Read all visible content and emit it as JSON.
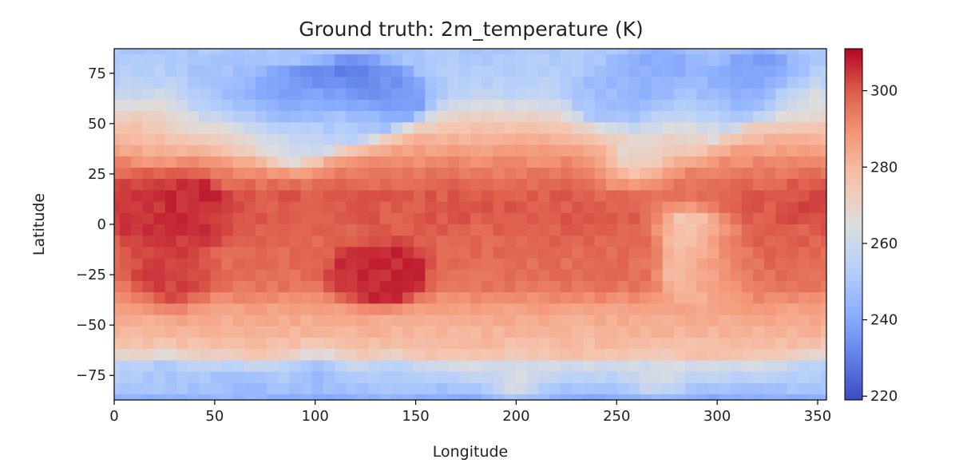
{
  "chart_data": {
    "type": "heatmap",
    "title": "Ground truth: 2m_temperature (K)",
    "xlabel": "Longitude",
    "ylabel": "Latitude",
    "xlim": [
      0,
      354.375
    ],
    "ylim": [
      -87.1875,
      87.1875
    ],
    "x_ticks": [
      0,
      50,
      100,
      150,
      200,
      250,
      300,
      350
    ],
    "x_tick_labels": [
      "0",
      "50",
      "100",
      "150",
      "200",
      "250",
      "300",
      "350"
    ],
    "y_ticks": [
      75,
      50,
      25,
      0,
      -25,
      -50,
      -75
    ],
    "y_tick_labels": [
      "75",
      "50",
      "25",
      "0",
      "−25",
      "−50",
      "−75"
    ],
    "colormap": "coolwarm",
    "color_range": [
      219,
      311
    ],
    "colorbar_ticks": [
      300,
      280,
      260,
      240,
      220
    ],
    "colorbar_tick_labels": [
      "300",
      "280",
      "260",
      "240",
      "220"
    ],
    "grid": {
      "n_lon": 64,
      "n_lat": 32,
      "lon_step": 5.625,
      "lat_step": 5.625,
      "first_lon": 0,
      "first_lat": 87.1875
    },
    "features": [
      {
        "lon": 36,
        "lat": 10,
        "value": 309
      },
      {
        "lon": 30,
        "lat": 8,
        "value": 307
      },
      {
        "lon": 10,
        "lat": 10,
        "value": 303
      },
      {
        "lon": 122,
        "lat": -24,
        "value": 308
      },
      {
        "lon": 142,
        "lat": -24,
        "value": 308
      },
      {
        "lon": 130,
        "lat": -25,
        "value": 303
      },
      {
        "lon": 20,
        "lat": 5,
        "value": 304
      },
      {
        "lon": 25,
        "lat": -20,
        "value": 303
      },
      {
        "lon": 30,
        "lat": -30,
        "value": 303
      },
      {
        "lon": 40,
        "lat": 0,
        "value": 303
      },
      {
        "lon": 300,
        "lat": -25,
        "value": 302
      },
      {
        "lon": 315,
        "lat": -10,
        "value": 301
      },
      {
        "lon": 345,
        "lat": 12,
        "value": 302
      },
      {
        "lon": 230,
        "lat": 15,
        "value": 300
      },
      {
        "lon": 160,
        "lat": 10,
        "value": 300
      },
      {
        "lon": 95,
        "lat": 65,
        "value": 232
      },
      {
        "lon": 115,
        "lat": 70,
        "value": 226
      },
      {
        "lon": 130,
        "lat": 68,
        "value": 233
      },
      {
        "lon": 145,
        "lat": 62,
        "value": 238
      },
      {
        "lon": 75,
        "lat": 62,
        "value": 238
      },
      {
        "lon": 60,
        "lat": 65,
        "value": 243
      },
      {
        "lon": 40,
        "lat": 66,
        "value": 248
      },
      {
        "lon": 55,
        "lat": 75,
        "value": 252
      },
      {
        "lon": 100,
        "lat": 55,
        "value": 253
      },
      {
        "lon": 120,
        "lat": 50,
        "value": 256
      },
      {
        "lon": 325,
        "lat": 75,
        "value": 238
      },
      {
        "lon": 318,
        "lat": 72,
        "value": 236
      },
      {
        "lon": 265,
        "lat": 65,
        "value": 242
      },
      {
        "lon": 255,
        "lat": 70,
        "value": 244
      },
      {
        "lon": 285,
        "lat": 55,
        "value": 252
      },
      {
        "lon": 300,
        "lat": 60,
        "value": 246
      },
      {
        "lon": 240,
        "lat": 60,
        "value": 250
      },
      {
        "lon": 275,
        "lat": 80,
        "value": 240
      },
      {
        "lon": 30,
        "lat": 55,
        "value": 268
      },
      {
        "lon": 20,
        "lat": 42,
        "value": 282
      },
      {
        "lon": 60,
        "lat": 42,
        "value": 276
      },
      {
        "lon": 90,
        "lat": 38,
        "value": 262
      },
      {
        "lon": 258,
        "lat": 32,
        "value": 270
      },
      {
        "lon": 285,
        "lat": 42,
        "value": 282
      },
      {
        "lon": 340,
        "lat": 60,
        "value": 270
      },
      {
        "lon": 285,
        "lat": 0,
        "value": 275
      },
      {
        "lon": 293,
        "lat": -20,
        "value": 274
      },
      {
        "lon": 292,
        "lat": -30,
        "value": 276
      },
      {
        "lon": 25,
        "lat": -75,
        "value": 250
      },
      {
        "lon": 60,
        "lat": -80,
        "value": 246
      },
      {
        "lon": 100,
        "lat": -75,
        "value": 246
      },
      {
        "lon": 140,
        "lat": -78,
        "value": 250
      },
      {
        "lon": 200,
        "lat": -78,
        "value": 263
      },
      {
        "lon": 270,
        "lat": -76,
        "value": 262
      },
      {
        "lon": 350,
        "lat": -75,
        "value": 252
      }
    ]
  }
}
